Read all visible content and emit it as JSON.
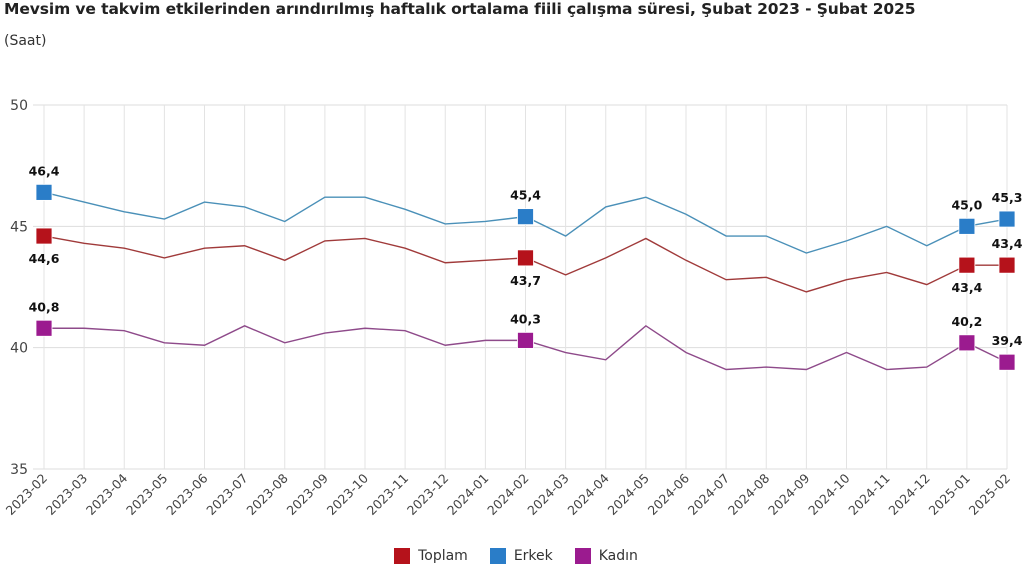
{
  "header": {
    "title": "Mevsim ve takvim etkilerinden arındırılmış haftalık ortalama fiili çalışma süresi, Şubat 2023 - Şubat 2025",
    "subtitle": "(Saat)"
  },
  "chart_data": {
    "type": "line",
    "title": "Mevsim ve takvim etkilerinden arındırılmış haftalık ortalama fiili çalışma süresi, Şubat 2023 - Şubat 2025",
    "subtitle": "(Saat)",
    "xlabel": "",
    "ylabel": "Saat",
    "ylim": [
      35,
      50
    ],
    "yticks": [
      35,
      40,
      45,
      50
    ],
    "grid": true,
    "legend_position": "bottom-center",
    "x": [
      "2023-02",
      "2023-03",
      "2023-04",
      "2023-05",
      "2023-06",
      "2023-07",
      "2023-08",
      "2023-09",
      "2023-10",
      "2023-11",
      "2023-12",
      "2024-01",
      "2024-02",
      "2024-03",
      "2024-04",
      "2024-05",
      "2024-06",
      "2024-07",
      "2024-08",
      "2024-09",
      "2024-10",
      "2024-11",
      "2024-12",
      "2025-01",
      "2025-02"
    ],
    "series": [
      {
        "name": "Toplam",
        "color": "#b5121b",
        "line_color": "#a03a3a",
        "values": [
          44.6,
          44.3,
          44.1,
          43.7,
          44.1,
          44.2,
          43.6,
          44.4,
          44.5,
          44.1,
          43.5,
          43.6,
          43.7,
          43.0,
          43.7,
          44.5,
          43.6,
          42.8,
          42.9,
          42.3,
          42.8,
          43.1,
          42.6,
          43.4,
          43.4
        ],
        "labeled_points": [
          {
            "index": 0,
            "label": "44,6",
            "position": "below"
          },
          {
            "index": 12,
            "label": "43,7",
            "position": "below"
          },
          {
            "index": 23,
            "label": "43,4",
            "position": "below"
          },
          {
            "index": 24,
            "label": "43,4",
            "position": "above"
          }
        ]
      },
      {
        "name": "Erkek",
        "color": "#2a7dc8",
        "line_color": "#4a90b8",
        "values": [
          46.4,
          46.0,
          45.6,
          45.3,
          46.0,
          45.8,
          45.2,
          46.2,
          46.2,
          45.7,
          45.1,
          45.2,
          45.4,
          44.6,
          45.8,
          46.2,
          45.5,
          44.6,
          44.6,
          43.9,
          44.4,
          45.0,
          44.2,
          45.0,
          45.3
        ],
        "labeled_points": [
          {
            "index": 0,
            "label": "46,4",
            "position": "above"
          },
          {
            "index": 12,
            "label": "45,4",
            "position": "above"
          },
          {
            "index": 23,
            "label": "45,0",
            "position": "above"
          },
          {
            "index": 24,
            "label": "45,3",
            "position": "above"
          }
        ]
      },
      {
        "name": "Kadın",
        "color": "#9b1b8f",
        "line_color": "#8e4a8a",
        "values": [
          40.8,
          40.8,
          40.7,
          40.2,
          40.1,
          40.9,
          40.2,
          40.6,
          40.8,
          40.7,
          40.1,
          40.3,
          40.3,
          39.8,
          39.5,
          40.9,
          39.8,
          39.1,
          39.2,
          39.1,
          39.8,
          39.1,
          39.2,
          40.2,
          39.4
        ],
        "labeled_points": [
          {
            "index": 0,
            "label": "40,8",
            "position": "above"
          },
          {
            "index": 12,
            "label": "40,3",
            "position": "above"
          },
          {
            "index": 23,
            "label": "40,2",
            "position": "above"
          },
          {
            "index": 24,
            "label": "39,4",
            "position": "above"
          }
        ]
      }
    ]
  },
  "legend": {
    "items": [
      {
        "label": "Toplam",
        "color": "#b5121b"
      },
      {
        "label": "Erkek",
        "color": "#2a7dc8"
      },
      {
        "label": "Kadın",
        "color": "#9b1b8f"
      }
    ]
  }
}
